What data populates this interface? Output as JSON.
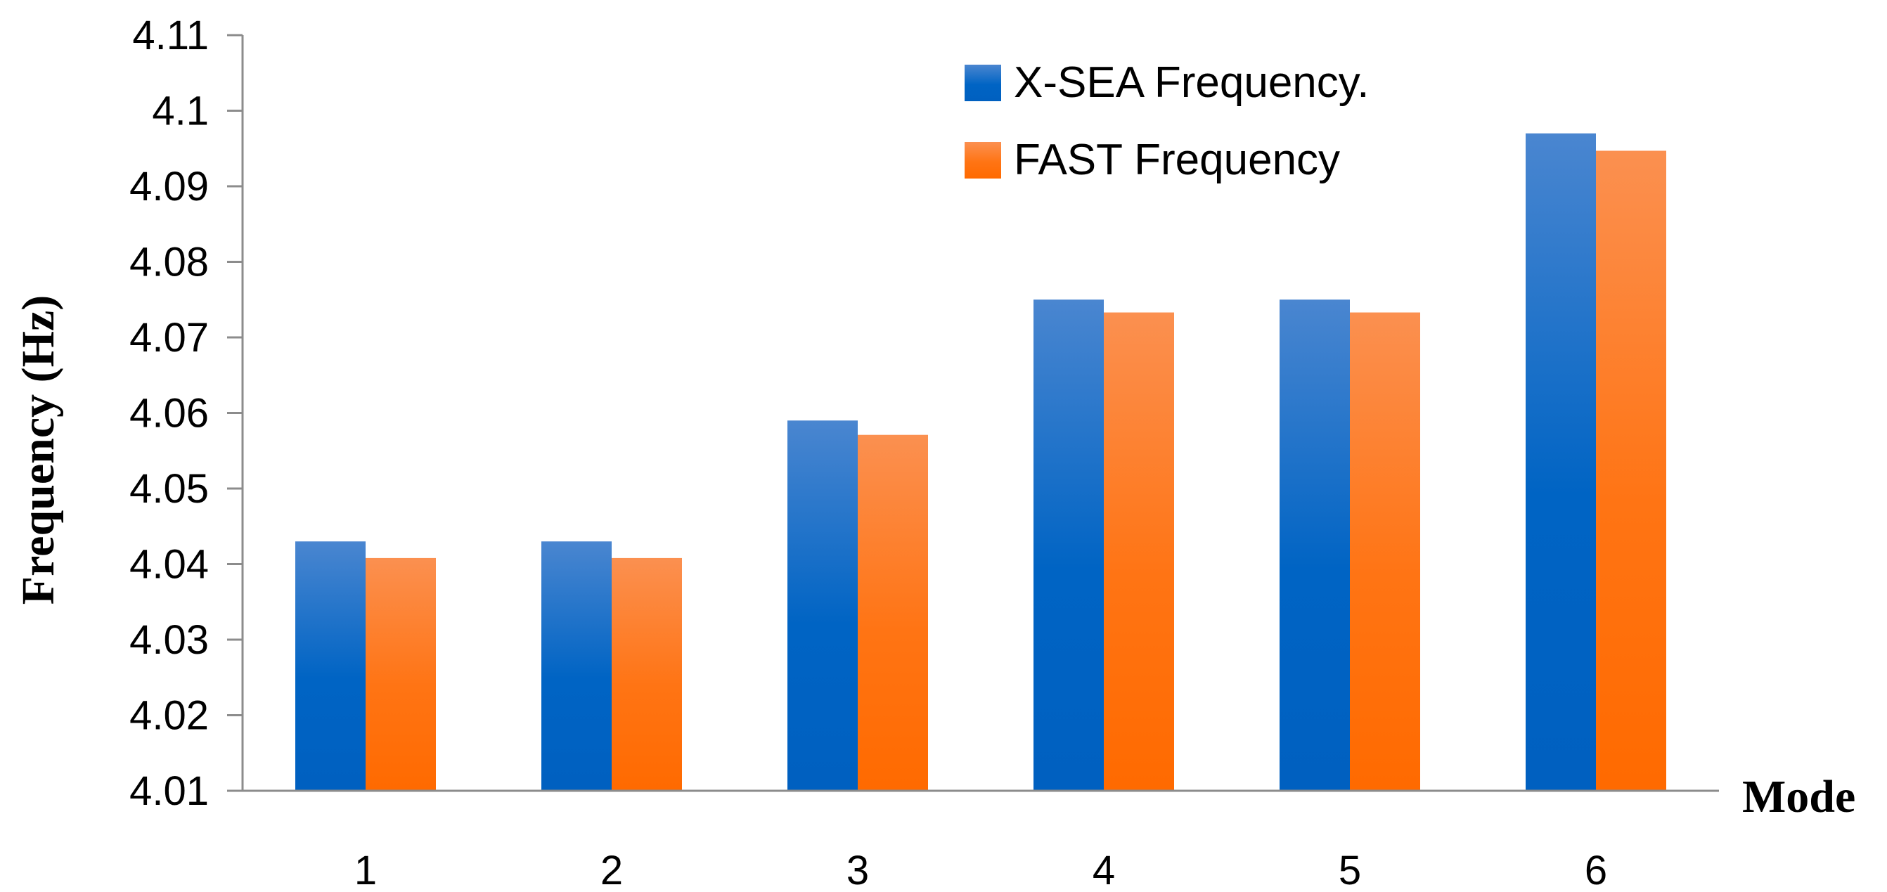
{
  "chart_data": {
    "type": "bar",
    "title": "",
    "xlabel": "Mode",
    "ylabel": "Frequency (Hz)",
    "categories": [
      "1",
      "2",
      "3",
      "4",
      "5",
      "6"
    ],
    "series": [
      {
        "name": "X-SEA Frequency.",
        "values": [
          4.043,
          4.043,
          4.059,
          4.075,
          4.075,
          4.097
        ]
      },
      {
        "name": "FAST Frequency",
        "values": [
          4.0408,
          4.0408,
          4.0571,
          4.0733,
          4.0733,
          4.0947
        ]
      }
    ],
    "ylim": [
      4.01,
      4.11
    ],
    "yticks": [
      "4.01",
      "4.02",
      "4.03",
      "4.04",
      "4.05",
      "4.06",
      "4.07",
      "4.08",
      "4.09",
      "4.1",
      "4.11"
    ],
    "grid": false,
    "legend_position": "top-right",
    "colors": {
      "X-SEA Frequency.": {
        "light": "#4a86d0",
        "dark": "#0060c0"
      },
      "FAST Frequency": {
        "light": "#fb9050",
        "dark": "#ff6a00"
      }
    }
  }
}
